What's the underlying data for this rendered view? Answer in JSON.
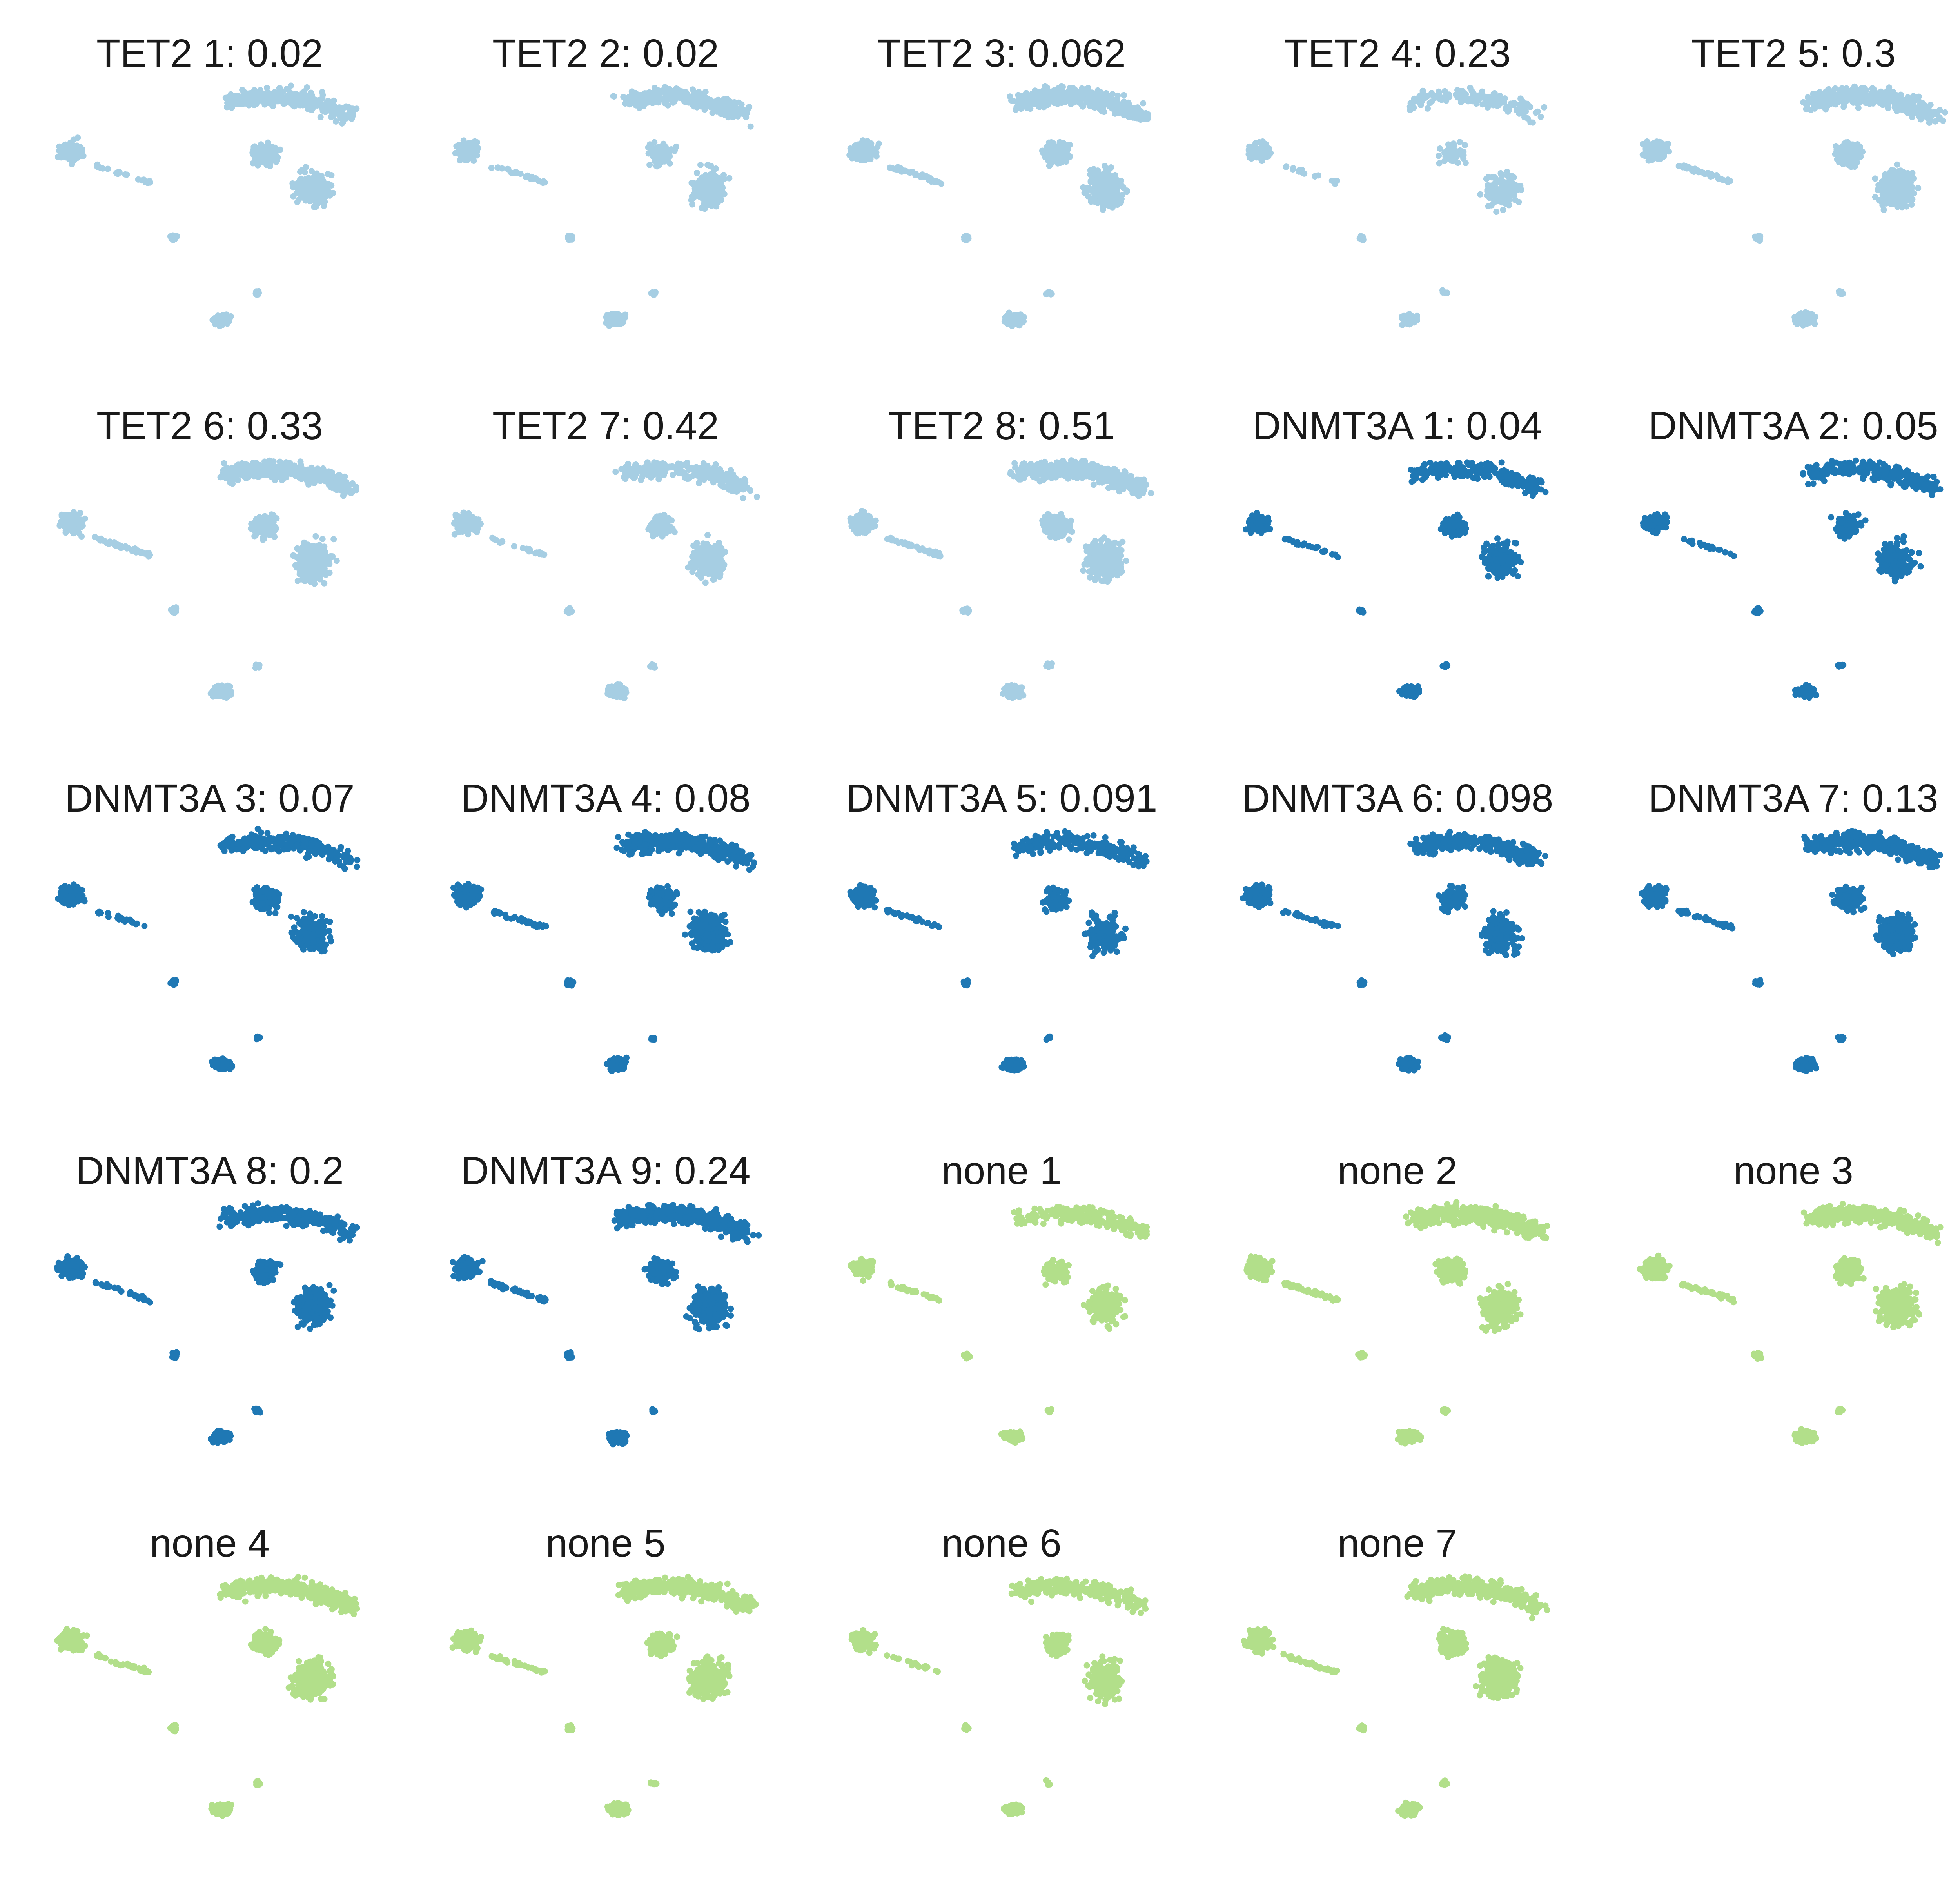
{
  "chart_data": {
    "type": "scatter",
    "description_kind": "small-multiples UMAP embeddings, one panel per sample",
    "axes": "hidden",
    "grid": false,
    "legend": "none",
    "colors": {
      "TET2": "#a6cee3",
      "DNMT3A": "#1f78b4",
      "none": "#b2df8a"
    },
    "panels": [
      {
        "title": "TET2 1: 0.02",
        "group": "TET2",
        "density": 0.55
      },
      {
        "title": "TET2 2: 0.02",
        "group": "TET2",
        "density": 0.55
      },
      {
        "title": "TET2 3: 0.062",
        "group": "TET2",
        "density": 1.0
      },
      {
        "title": "TET2 4: 0.23",
        "group": "TET2",
        "density": 0.25
      },
      {
        "title": "TET2 5: 0.3",
        "group": "TET2",
        "density": 1.0
      },
      {
        "title": "TET2 6: 0.33",
        "group": "TET2",
        "density": 0.9
      },
      {
        "title": "TET2 7: 0.42",
        "group": "TET2",
        "density": 0.5
      },
      {
        "title": "TET2 8: 0.51",
        "group": "TET2",
        "density": 1.0
      },
      {
        "title": "DNMT3A 1: 0.04",
        "group": "DNMT3A",
        "density": 0.4
      },
      {
        "title": "DNMT3A 2: 0.05",
        "group": "DNMT3A",
        "density": 0.45
      },
      {
        "title": "DNMT3A 3: 0.07",
        "group": "DNMT3A",
        "density": 0.5
      },
      {
        "title": "DNMT3A 4: 0.08",
        "group": "DNMT3A",
        "density": 1.0
      },
      {
        "title": "DNMT3A 5: 0.091",
        "group": "DNMT3A",
        "density": 0.45
      },
      {
        "title": "DNMT3A 6: 0.098",
        "group": "DNMT3A",
        "density": 0.6
      },
      {
        "title": "DNMT3A 7: 0.13",
        "group": "DNMT3A",
        "density": 0.85
      },
      {
        "title": "DNMT3A 8: 0.2",
        "group": "DNMT3A",
        "density": 0.6
      },
      {
        "title": "DNMT3A 9: 0.24",
        "group": "DNMT3A",
        "density": 0.9
      },
      {
        "title": "none 1",
        "group": "none",
        "density": 0.45
      },
      {
        "title": "none 2",
        "group": "none",
        "density": 0.9
      },
      {
        "title": "none 3",
        "group": "none",
        "density": 1.0
      },
      {
        "title": "none 4",
        "group": "none",
        "density": 0.9
      },
      {
        "title": "none 5",
        "group": "none",
        "density": 0.85
      },
      {
        "title": "none 6",
        "group": "none",
        "density": 0.5
      },
      {
        "title": "none 7",
        "group": "none",
        "density": 0.9
      }
    ]
  }
}
